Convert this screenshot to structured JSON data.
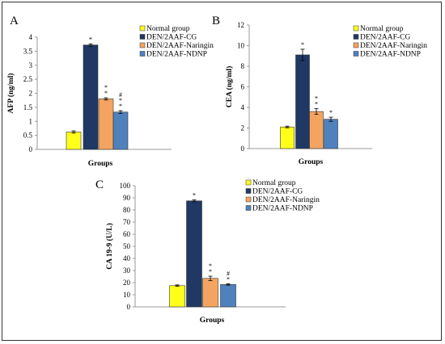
{
  "chart_data": [
    {
      "type": "bar",
      "panel": "A",
      "categories": [
        "Normal group",
        "DEN/2AAF-CG",
        "DEN/2AAF-Naringin",
        "DEN/2AAF-NDNP"
      ],
      "values": [
        0.62,
        3.72,
        1.8,
        1.33
      ],
      "errors": [
        0.04,
        0.04,
        0.04,
        0.05
      ],
      "annotations": [
        "",
        "*",
        "*\n*",
        "#\n*\n*"
      ],
      "xlabel": "Groups",
      "ylabel": "AFP (ng/ml)",
      "ylim": [
        0,
        4
      ],
      "yticks": [
        "0",
        "0.5",
        "1",
        "1.5",
        "2",
        "2.5",
        "3",
        "3.5",
        "4"
      ],
      "tickvals": [
        0,
        0.5,
        1,
        1.5,
        2,
        2.5,
        3,
        3.5,
        4
      ]
    },
    {
      "type": "bar",
      "panel": "B",
      "categories": [
        "Normal group",
        "DEN/2AAF-CG",
        "DEN/2AAF-Naringin",
        "DEN/2AAF-NDNP"
      ],
      "values": [
        2.1,
        9.1,
        3.6,
        2.85
      ],
      "errors": [
        0.08,
        0.55,
        0.28,
        0.2
      ],
      "annotations": [
        "",
        "*",
        "*\n*",
        "*"
      ],
      "xlabel": "Groups",
      "ylabel": "CEA (ng/ml)",
      "ylim": [
        0,
        12
      ],
      "yticks": [
        "0",
        "2",
        "4",
        "6",
        "8",
        "10",
        "12"
      ],
      "tickvals": [
        0,
        2,
        4,
        6,
        8,
        10,
        12
      ]
    },
    {
      "type": "bar",
      "panel": "C",
      "categories": [
        "Normal group",
        "DEN/2AAF-CG",
        "DEN/2AAF-Naringin",
        "DEN/2AAF-NDNP"
      ],
      "values": [
        17.5,
        87.5,
        23.5,
        18.5
      ],
      "errors": [
        0.6,
        0.8,
        1.8,
        0.6
      ],
      "annotations": [
        "",
        "*",
        "*\n*",
        "#\n*"
      ],
      "xlabel": "Groups",
      "ylabel": "CA 19-9 (U/L)",
      "ylim": [
        0,
        100
      ],
      "yticks": [
        "0",
        "10",
        "20",
        "30",
        "40",
        "50",
        "60",
        "70",
        "80",
        "90",
        "100"
      ],
      "tickvals": [
        0,
        10,
        20,
        30,
        40,
        50,
        60,
        70,
        80,
        90,
        100
      ]
    }
  ],
  "legend": [
    "Normal group",
    "DEN/2AAF-CG",
    "DEN/2AAF-Naringin",
    "DEN/2AAF-NDNP"
  ],
  "colors": [
    "#ffff1a",
    "#1f3864",
    "#f4a460",
    "#4f81bd"
  ],
  "edge_color": "#333333"
}
